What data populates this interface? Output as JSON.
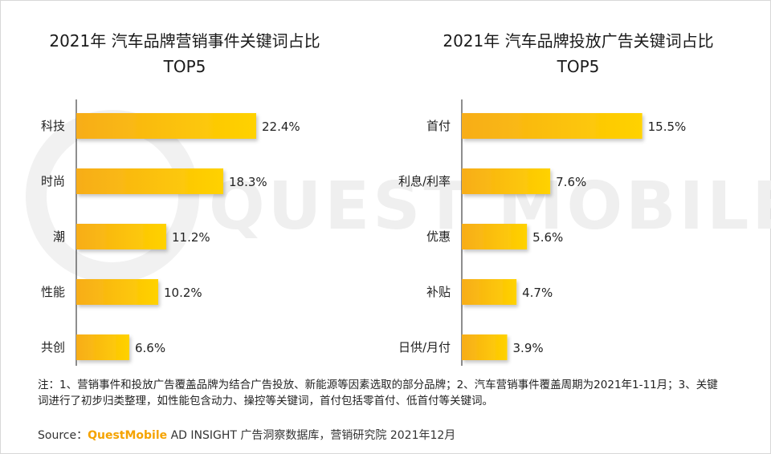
{
  "watermark": {
    "text": "QUEST MOBILE"
  },
  "charts": [
    {
      "title": "2021年 汽车品牌营销事件关键词占比",
      "subtitle": "TOP5",
      "chart_data": {
        "type": "bar",
        "orientation": "horizontal",
        "title": "2021年 汽车品牌营销事件关键词占比 TOP5",
        "categories": [
          "科技",
          "时尚",
          "潮",
          "性能",
          "共创"
        ],
        "values": [
          22.4,
          18.3,
          11.2,
          10.2,
          6.6
        ],
        "labels": [
          "22.4%",
          "18.3%",
          "11.2%",
          "10.2%",
          "6.6%"
        ],
        "unit": "%",
        "xlim": [
          0,
          30
        ]
      }
    },
    {
      "title": "2021年 汽车品牌投放广告关键词占比",
      "subtitle": "TOP5",
      "chart_data": {
        "type": "bar",
        "orientation": "horizontal",
        "title": "2021年 汽车品牌投放广告关键词占比 TOP5",
        "categories": [
          "首付",
          "利息/利率",
          "优惠",
          "补贴",
          "日供/月付"
        ],
        "values": [
          15.5,
          7.6,
          5.6,
          4.7,
          3.9
        ],
        "labels": [
          "15.5%",
          "7.6%",
          "5.6%",
          "4.7%",
          "3.9%"
        ],
        "unit": "%",
        "xlim": [
          0,
          20.7
        ]
      }
    }
  ],
  "note": "注：1、营销事件和投放广告覆盖品牌为结合广告投放、新能源等因素选取的部分品牌；2、汽车营销事件覆盖周期为2021年1-11月；3、关键词进行了初步归类整理，如性能包含动力、操控等关键词，首付包括零首付、低首付等关键词。",
  "source": {
    "prefix": "Source：",
    "brand": "QuestMobile",
    "suffix": " AD INSIGHT 广告洞察数据库，营销研究院 2021年12月"
  },
  "colors": {
    "bar_start": "#f7ad1a",
    "bar_end": "#ffd200",
    "axis": "#444444",
    "text": "#222222",
    "brand": "#f5a300"
  }
}
